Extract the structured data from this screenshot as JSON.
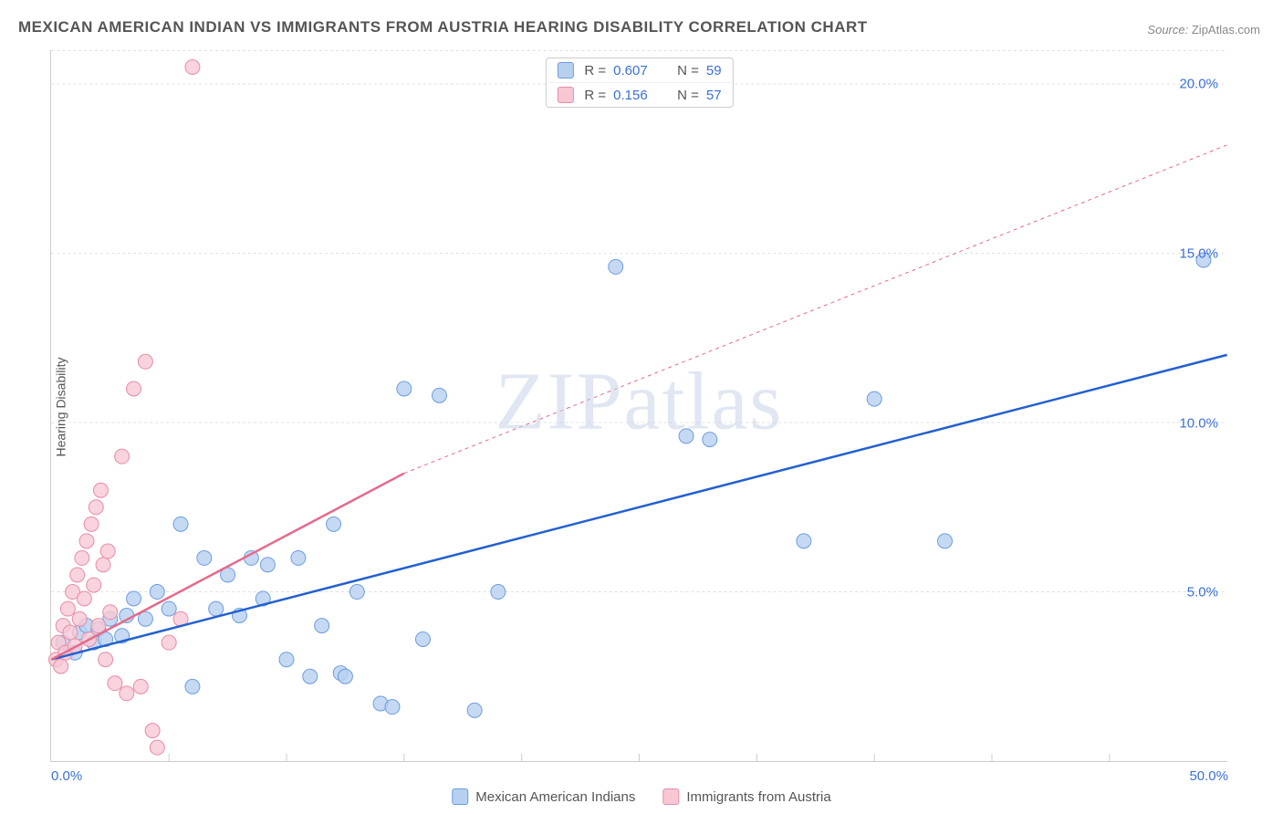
{
  "title": "MEXICAN AMERICAN INDIAN VS IMMIGRANTS FROM AUSTRIA HEARING DISABILITY CORRELATION CHART",
  "source_label": "Source:",
  "source_value": "ZipAtlas.com",
  "ylabel": "Hearing Disability",
  "watermark_a": "ZIP",
  "watermark_b": "atlas",
  "chart": {
    "type": "scatter",
    "xlim": [
      0,
      50
    ],
    "ylim": [
      0,
      21
    ],
    "yticks": [
      5,
      10,
      15,
      20
    ],
    "ytick_labels": [
      "5.0%",
      "10.0%",
      "15.0%",
      "20.0%"
    ],
    "xticks": [
      0,
      50
    ],
    "xtick_labels": [
      "0.0%",
      "50.0%"
    ],
    "xtick_marks": [
      5,
      10,
      15,
      20,
      25,
      30,
      35,
      40,
      45
    ],
    "grid_color": "#e0e0e0",
    "background": "#ffffff",
    "series": [
      {
        "id": "mexican",
        "label": "Mexican American Indians",
        "point_fill": "#b8d0f0",
        "point_stroke": "#6a9de0",
        "line_color": "#2360d0",
        "line_dash": "none",
        "r": 0.607,
        "n": 59,
        "reg_line": {
          "x1": 0,
          "y1": 3.0,
          "x2": 50,
          "y2": 12.0
        },
        "points": [
          [
            0.5,
            3.5
          ],
          [
            1,
            3.2
          ],
          [
            1.2,
            3.8
          ],
          [
            1.5,
            4.0
          ],
          [
            1.8,
            3.5
          ],
          [
            2,
            3.9
          ],
          [
            2.3,
            3.6
          ],
          [
            2.5,
            4.2
          ],
          [
            3,
            3.7
          ],
          [
            3.2,
            4.3
          ],
          [
            3.5,
            4.8
          ],
          [
            4,
            4.2
          ],
          [
            4.5,
            5.0
          ],
          [
            5,
            4.5
          ],
          [
            5.5,
            7.0
          ],
          [
            6,
            2.2
          ],
          [
            6.5,
            6.0
          ],
          [
            7,
            4.5
          ],
          [
            7.5,
            5.5
          ],
          [
            8,
            4.3
          ],
          [
            8.5,
            6.0
          ],
          [
            9,
            4.8
          ],
          [
            9.2,
            5.8
          ],
          [
            10,
            3.0
          ],
          [
            10.5,
            6.0
          ],
          [
            11,
            2.5
          ],
          [
            11.5,
            4.0
          ],
          [
            12,
            7.0
          ],
          [
            12.3,
            2.6
          ],
          [
            12.5,
            2.5
          ],
          [
            13,
            5.0
          ],
          [
            14,
            1.7
          ],
          [
            14.5,
            1.6
          ],
          [
            15,
            11.0
          ],
          [
            15.8,
            3.6
          ],
          [
            16.5,
            10.8
          ],
          [
            18,
            1.5
          ],
          [
            19,
            5.0
          ],
          [
            24,
            14.6
          ],
          [
            27,
            9.6
          ],
          [
            28,
            9.5
          ],
          [
            32,
            6.5
          ],
          [
            35,
            10.7
          ],
          [
            38,
            6.5
          ],
          [
            49,
            14.8
          ]
        ]
      },
      {
        "id": "austria",
        "label": "Immigrants from Austria",
        "point_fill": "#f7c8d4",
        "point_stroke": "#e88ca4",
        "line_color": "#e56a8a",
        "line_dash": "4,4",
        "r": 0.156,
        "n": 57,
        "reg_line_solid": {
          "x1": 0,
          "y1": 3.0,
          "x2": 15,
          "y2": 8.5
        },
        "reg_line_dashed": {
          "x1": 15,
          "y1": 8.5,
          "x2": 50,
          "y2": 18.2
        },
        "points": [
          [
            0.2,
            3.0
          ],
          [
            0.3,
            3.5
          ],
          [
            0.4,
            2.8
          ],
          [
            0.5,
            4.0
          ],
          [
            0.6,
            3.2
          ],
          [
            0.7,
            4.5
          ],
          [
            0.8,
            3.8
          ],
          [
            0.9,
            5.0
          ],
          [
            1.0,
            3.4
          ],
          [
            1.1,
            5.5
          ],
          [
            1.2,
            4.2
          ],
          [
            1.3,
            6.0
          ],
          [
            1.4,
            4.8
          ],
          [
            1.5,
            6.5
          ],
          [
            1.6,
            3.6
          ],
          [
            1.7,
            7.0
          ],
          [
            1.8,
            5.2
          ],
          [
            1.9,
            7.5
          ],
          [
            2.0,
            4.0
          ],
          [
            2.1,
            8.0
          ],
          [
            2.2,
            5.8
          ],
          [
            2.3,
            3.0
          ],
          [
            2.4,
            6.2
          ],
          [
            2.5,
            4.4
          ],
          [
            2.7,
            2.3
          ],
          [
            3.0,
            9.0
          ],
          [
            3.2,
            2.0
          ],
          [
            3.5,
            11.0
          ],
          [
            3.8,
            2.2
          ],
          [
            4.0,
            11.8
          ],
          [
            4.3,
            0.9
          ],
          [
            4.5,
            0.4
          ],
          [
            5.0,
            3.5
          ],
          [
            5.5,
            4.2
          ],
          [
            6,
            20.5
          ]
        ]
      }
    ]
  },
  "stats_legend_colors": {
    "blue_fill": "#b8d0f0",
    "blue_stroke": "#6a9de0",
    "pink_fill": "#f7c8d4",
    "pink_stroke": "#e88ca4"
  },
  "labels": {
    "r": "R =",
    "n": "N ="
  }
}
